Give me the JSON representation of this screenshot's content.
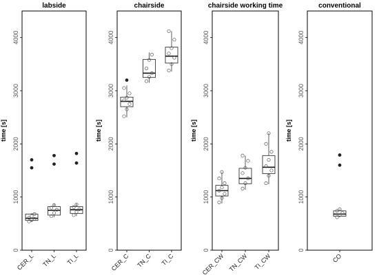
{
  "chart_data": [
    {
      "type": "box",
      "title": "labside",
      "ylabel": "time [s]",
      "ylim": [
        0,
        4500
      ],
      "yticks": [
        0,
        1000,
        2000,
        3000,
        4000
      ],
      "categories": [
        "CER_L",
        "TN_L",
        "TI_L"
      ],
      "boxes": [
        {
          "q1": 560,
          "median": 600,
          "q3": 680,
          "whisker_low": 530,
          "whisker_high": 700,
          "outliers": [
            1550,
            1700
          ],
          "points": [
            540,
            570,
            590,
            610,
            640,
            680
          ]
        },
        {
          "q1": 660,
          "median": 750,
          "q3": 820,
          "whisker_low": 620,
          "whisker_high": 880,
          "outliers": [
            1620,
            1780
          ],
          "points": [
            640,
            700,
            760,
            800,
            850
          ]
        },
        {
          "q1": 690,
          "median": 760,
          "q3": 820,
          "whisker_low": 640,
          "whisker_high": 880,
          "outliers": [
            1640,
            1820
          ],
          "points": [
            660,
            720,
            770,
            810,
            860
          ]
        }
      ]
    },
    {
      "type": "box",
      "title": "chairside",
      "ylabel": "time [s]",
      "ylim": [
        0,
        4500
      ],
      "yticks": [
        0,
        1000,
        2000,
        3000,
        4000
      ],
      "categories": [
        "CER_C",
        "TN_C",
        "TI_C"
      ],
      "boxes": [
        {
          "q1": 2700,
          "median": 2800,
          "q3": 2880,
          "whisker_low": 2500,
          "whisker_high": 3100,
          "outliers": [
            3200
          ],
          "points": [
            2520,
            2650,
            2750,
            2820,
            2870,
            2950,
            3050
          ]
        },
        {
          "q1": 3250,
          "median": 3330,
          "q3": 3590,
          "whisker_low": 3150,
          "whisker_high": 3720,
          "outliers": [],
          "points": [
            3180,
            3260,
            3330,
            3420,
            3580,
            3680
          ]
        },
        {
          "q1": 3520,
          "median": 3650,
          "q3": 3820,
          "whisker_low": 3360,
          "whisker_high": 4120,
          "outliers": [],
          "points": [
            3380,
            3500,
            3620,
            3700,
            3800,
            3960,
            4120
          ]
        }
      ]
    },
    {
      "type": "box",
      "title": "chairside working time",
      "ylabel": "time [s]",
      "ylim": [
        0,
        4500
      ],
      "yticks": [
        0,
        1000,
        2000,
        3000,
        4000
      ],
      "categories": [
        "CER_CW",
        "TN_CW",
        "TI_CW"
      ],
      "boxes": [
        {
          "q1": 1020,
          "median": 1120,
          "q3": 1220,
          "whisker_low": 880,
          "whisker_high": 1470,
          "outliers": [],
          "points": [
            900,
            980,
            1060,
            1120,
            1180,
            1260,
            1350,
            1470
          ]
        },
        {
          "q1": 1250,
          "median": 1350,
          "q3": 1540,
          "whisker_low": 1140,
          "whisker_high": 1780,
          "outliers": [],
          "points": [
            1160,
            1260,
            1350,
            1450,
            1550,
            1680,
            1780
          ]
        },
        {
          "q1": 1440,
          "median": 1560,
          "q3": 1780,
          "whisker_low": 1240,
          "whisker_high": 2200,
          "outliers": [],
          "points": [
            1260,
            1400,
            1500,
            1580,
            1700,
            1850,
            2000,
            2200
          ]
        }
      ]
    },
    {
      "type": "box",
      "title": "conventional",
      "ylabel": "time [s]",
      "ylim": [
        0,
        4500
      ],
      "yticks": [
        0,
        1000,
        2000,
        3000,
        4000
      ],
      "categories": [
        "CO"
      ],
      "boxes": [
        {
          "q1": 640,
          "median": 680,
          "q3": 740,
          "whisker_low": 620,
          "whisker_high": 770,
          "outliers": [
            1600,
            1790
          ],
          "points": [
            620,
            660,
            700,
            740,
            770
          ]
        }
      ]
    }
  ]
}
